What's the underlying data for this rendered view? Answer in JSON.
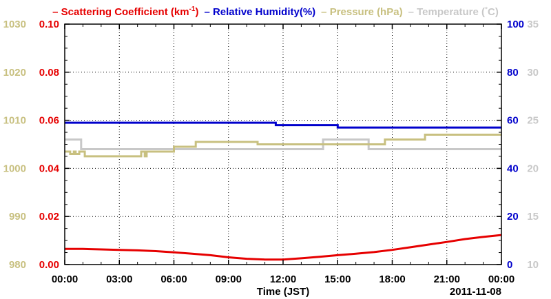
{
  "chart_data": {
    "type": "line",
    "legend": {
      "placement": "top",
      "items": [
        {
          "key": "scattering",
          "label": "Scattering Coefficient (km",
          "sup": "-1",
          "label_end": ")",
          "color": "#e60000"
        },
        {
          "key": "humidity",
          "label": "Relative Humidity(%)",
          "color": "#0000cc"
        },
        {
          "key": "pressure",
          "label": "Pressure (hPa)",
          "color": "#c8c080"
        },
        {
          "key": "temperature",
          "label": "Temperature (",
          "deg": "°",
          "label_end": "C)",
          "color": "#c8c8c8"
        }
      ]
    },
    "xlabel": "Time (JST)",
    "date_label": "2011-11-08",
    "x_ticks": [
      "00:00",
      "03:00",
      "06:00",
      "09:00",
      "12:00",
      "15:00",
      "18:00",
      "21:00",
      "00:00"
    ],
    "xlim_hours": [
      0,
      24
    ],
    "grid": true,
    "axes": {
      "scattering": {
        "side": "left-inner",
        "ylim": [
          0,
          0.1
        ],
        "ticks": [
          "0.00",
          "0.02",
          "0.04",
          "0.06",
          "0.08",
          "0.10"
        ],
        "color": "#e60000"
      },
      "pressure": {
        "side": "left-outer",
        "ylim": [
          980,
          1030
        ],
        "ticks": [
          "980",
          "990",
          "1000",
          "1010",
          "1020",
          "1030"
        ],
        "color": "#c8c080"
      },
      "humidity": {
        "side": "right-inner",
        "ylim": [
          0,
          100
        ],
        "ticks": [
          "0",
          "20",
          "40",
          "60",
          "80",
          "100"
        ],
        "color": "#0000cc"
      },
      "temperature": {
        "side": "right-outer",
        "ylim": [
          10,
          35
        ],
        "ticks": [
          "10",
          "15",
          "20",
          "25",
          "30",
          "35"
        ],
        "color": "#c8c8c8"
      }
    },
    "series": [
      {
        "key": "temperature",
        "name": "Temperature",
        "color": "#c8c8c8",
        "step": true,
        "x": [
          0,
          0.9,
          14.2,
          16.7,
          24
        ],
        "values": [
          23.0,
          22.0,
          23.0,
          22.0,
          22.0
        ]
      },
      {
        "key": "pressure",
        "name": "Pressure (hPa)",
        "color": "#c8c080",
        "step": true,
        "x": [
          0,
          0.3,
          0.5,
          0.6,
          0.8,
          1.1,
          4.2,
          4.4,
          4.5,
          4.6,
          6.0,
          7.2,
          10.6,
          17.6,
          19.8,
          24
        ],
        "values": [
          1003.5,
          1003.0,
          1003.5,
          1003.0,
          1003.5,
          1002.5,
          1003.5,
          1002.5,
          1003.5,
          1003.5,
          1004.5,
          1005.5,
          1005.0,
          1006.0,
          1007.0,
          1007.0
        ]
      },
      {
        "key": "humidity",
        "name": "Relative Humidity(%)",
        "color": "#0000cc",
        "step": true,
        "x": [
          0,
          11.6,
          15.0,
          24
        ],
        "values": [
          59,
          58,
          57,
          57
        ]
      },
      {
        "key": "scattering",
        "name": "Scattering Coefficient (km-1)",
        "color": "#e60000",
        "x": [
          0,
          1,
          2,
          3,
          4,
          5,
          6,
          7,
          8,
          9,
          10,
          11,
          12,
          13,
          14,
          15,
          16,
          17,
          18,
          19,
          20,
          21,
          22,
          23,
          24
        ],
        "values": [
          0.0065,
          0.0065,
          0.0063,
          0.0061,
          0.0059,
          0.0056,
          0.0051,
          0.0045,
          0.0039,
          0.003,
          0.0024,
          0.0021,
          0.0021,
          0.0026,
          0.0032,
          0.0039,
          0.0045,
          0.0052,
          0.0061,
          0.0072,
          0.0083,
          0.0094,
          0.0106,
          0.0115,
          0.0123
        ]
      }
    ]
  }
}
